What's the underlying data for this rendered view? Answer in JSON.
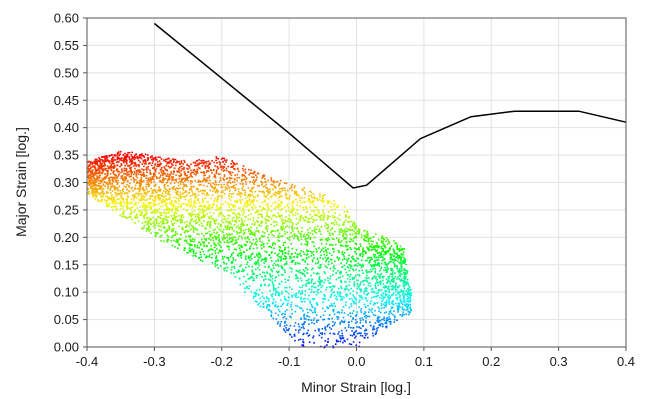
{
  "chart_data": {
    "type": "scatter",
    "xlabel": "Minor Strain [log.]",
    "ylabel": "Major Strain [log.]",
    "xlim": [
      -0.4,
      0.4
    ],
    "ylim": [
      0.0,
      0.6
    ],
    "xticks": [
      "-0.4",
      "-0.3",
      "-0.2",
      "-0.1",
      "0.0",
      "0.1",
      "0.2",
      "0.3",
      "0.4"
    ],
    "yticks": [
      "0.00",
      "0.05",
      "0.10",
      "0.15",
      "0.20",
      "0.25",
      "0.30",
      "0.35",
      "0.40",
      "0.45",
      "0.50",
      "0.55",
      "0.60"
    ],
    "grid": true,
    "legend": "none",
    "series": [
      {
        "kind": "line",
        "color": "#000000",
        "x": [
          -0.3,
          -0.2,
          -0.1,
          -0.005,
          0.015,
          0.095,
          0.17,
          0.235,
          0.33,
          0.4
        ],
        "y": [
          0.59,
          0.49,
          0.39,
          0.29,
          0.295,
          0.38,
          0.42,
          0.43,
          0.43,
          0.41
        ]
      },
      {
        "kind": "scatter-cloud",
        "colormap": "rainbow",
        "color_range": [
          0.0,
          0.35
        ],
        "note_region": {
          "upper_boundary_x": [
            -0.4,
            -0.35,
            -0.3,
            -0.25,
            -0.2,
            -0.15,
            -0.1,
            -0.05,
            -0.02,
            0.0,
            0.02,
            0.05,
            0.07,
            0.08
          ],
          "upper_boundary_y": [
            0.34,
            0.36,
            0.35,
            0.34,
            0.35,
            0.32,
            0.3,
            0.28,
            0.26,
            0.22,
            0.21,
            0.2,
            0.18,
            0.1
          ],
          "lower_boundary_x": [
            -0.4,
            -0.3,
            -0.2,
            -0.15,
            -0.1,
            -0.08,
            -0.05,
            0.0,
            0.05,
            0.07
          ],
          "lower_boundary_y": [
            0.28,
            0.2,
            0.14,
            0.08,
            0.02,
            0.0,
            0.0,
            0.0,
            0.04,
            0.06
          ]
        }
      }
    ]
  }
}
